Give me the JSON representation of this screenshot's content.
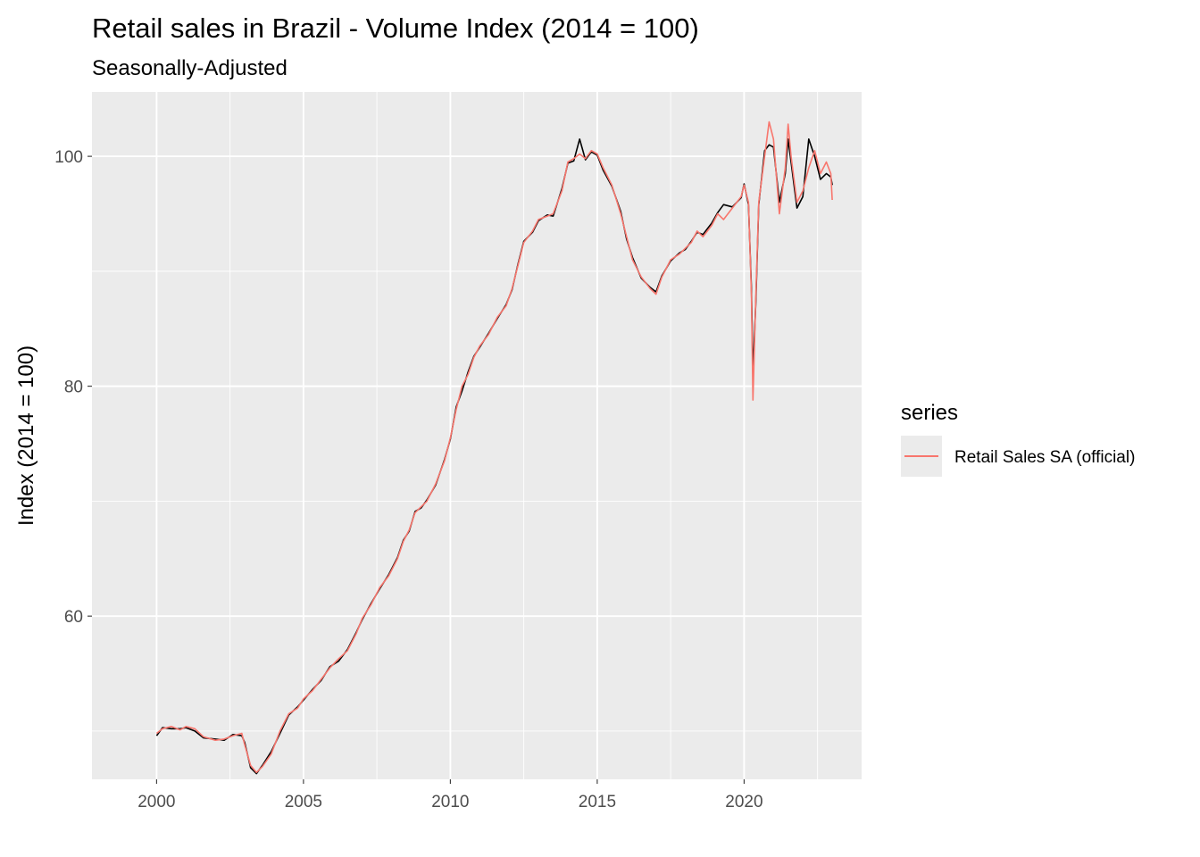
{
  "chart_data": {
    "type": "line",
    "title": "Retail sales in Brazil - Volume Index (2014 = 100)",
    "subtitle": "Seasonally-Adjusted",
    "xlabel": "",
    "ylabel": "Index (2014 = 100)",
    "xlim": [
      1997.8,
      2024.0
    ],
    "ylim": [
      45.8,
      105.6
    ],
    "x_ticks": [
      2000,
      2005,
      2010,
      2015,
      2020
    ],
    "x_tick_labels": [
      "2000",
      "2005",
      "2010",
      "2015",
      "2020"
    ],
    "y_ticks": [
      60,
      80,
      100
    ],
    "y_tick_labels": [
      "60",
      "80",
      "100"
    ],
    "grid": true,
    "legend": {
      "title": "series",
      "position": "right"
    },
    "colors": {
      "official": "#F8766D",
      "computed": "#000000",
      "panel": "#EBEBEB",
      "grid": "#FFFFFF"
    },
    "series": [
      {
        "name": "Retail Sales SA (official)",
        "color": "#F8766D",
        "points": [
          [
            2000.0,
            49.8
          ],
          [
            2000.2,
            50.2
          ],
          [
            2000.5,
            50.4
          ],
          [
            2000.8,
            50.1
          ],
          [
            2001.0,
            50.4
          ],
          [
            2001.3,
            50.2
          ],
          [
            2001.6,
            49.5
          ],
          [
            2002.0,
            49.2
          ],
          [
            2002.3,
            49.3
          ],
          [
            2002.6,
            49.6
          ],
          [
            2002.9,
            49.8
          ],
          [
            2003.0,
            48.8
          ],
          [
            2003.2,
            47.0
          ],
          [
            2003.4,
            46.4
          ],
          [
            2003.6,
            46.9
          ],
          [
            2003.9,
            48.0
          ],
          [
            2004.2,
            50.0
          ],
          [
            2004.5,
            51.5
          ],
          [
            2004.8,
            52.0
          ],
          [
            2005.0,
            52.8
          ],
          [
            2005.3,
            53.5
          ],
          [
            2005.6,
            54.5
          ],
          [
            2005.9,
            55.5
          ],
          [
            2006.2,
            56.3
          ],
          [
            2006.5,
            57.0
          ],
          [
            2006.8,
            58.5
          ],
          [
            2007.0,
            59.8
          ],
          [
            2007.3,
            61.0
          ],
          [
            2007.6,
            62.5
          ],
          [
            2007.9,
            63.5
          ],
          [
            2008.2,
            65.0
          ],
          [
            2008.4,
            66.5
          ],
          [
            2008.6,
            67.5
          ],
          [
            2008.8,
            69.0
          ],
          [
            2009.0,
            69.5
          ],
          [
            2009.2,
            70.0
          ],
          [
            2009.5,
            71.5
          ],
          [
            2009.8,
            73.5
          ],
          [
            2010.0,
            75.5
          ],
          [
            2010.2,
            78.0
          ],
          [
            2010.4,
            80.0
          ],
          [
            2010.6,
            81.0
          ],
          [
            2010.8,
            82.5
          ],
          [
            2011.0,
            83.5
          ],
          [
            2011.3,
            84.5
          ],
          [
            2011.6,
            86.0
          ],
          [
            2011.9,
            87.0
          ],
          [
            2012.1,
            88.5
          ],
          [
            2012.3,
            90.5
          ],
          [
            2012.5,
            92.5
          ],
          [
            2012.8,
            93.5
          ],
          [
            2013.0,
            94.5
          ],
          [
            2013.3,
            94.8
          ],
          [
            2013.5,
            95.0
          ],
          [
            2013.8,
            97.0
          ],
          [
            2014.0,
            99.5
          ],
          [
            2014.2,
            99.8
          ],
          [
            2014.4,
            100.2
          ],
          [
            2014.6,
            99.8
          ],
          [
            2014.8,
            100.5
          ],
          [
            2015.0,
            100.2
          ],
          [
            2015.2,
            99.0
          ],
          [
            2015.5,
            97.5
          ],
          [
            2015.8,
            95.0
          ],
          [
            2016.0,
            93.0
          ],
          [
            2016.2,
            91.0
          ],
          [
            2016.5,
            89.5
          ],
          [
            2016.8,
            88.5
          ],
          [
            2017.0,
            88.0
          ],
          [
            2017.2,
            89.5
          ],
          [
            2017.5,
            91.0
          ],
          [
            2017.8,
            91.5
          ],
          [
            2018.0,
            92.0
          ],
          [
            2018.2,
            92.5
          ],
          [
            2018.4,
            93.5
          ],
          [
            2018.6,
            93.0
          ],
          [
            2018.9,
            94.0
          ],
          [
            2019.1,
            95.0
          ],
          [
            2019.3,
            94.5
          ],
          [
            2019.6,
            95.5
          ],
          [
            2019.9,
            96.5
          ],
          [
            2020.0,
            97.5
          ],
          [
            2020.15,
            96.0
          ],
          [
            2020.25,
            88.0
          ],
          [
            2020.3,
            78.8
          ],
          [
            2020.4,
            88.0
          ],
          [
            2020.5,
            96.0
          ],
          [
            2020.7,
            100.0
          ],
          [
            2020.85,
            103.0
          ],
          [
            2021.0,
            101.5
          ],
          [
            2021.2,
            95.0
          ],
          [
            2021.4,
            99.0
          ],
          [
            2021.5,
            102.8
          ],
          [
            2021.6,
            100.0
          ],
          [
            2021.8,
            96.0
          ],
          [
            2022.0,
            97.0
          ],
          [
            2022.2,
            99.0
          ],
          [
            2022.4,
            100.5
          ],
          [
            2022.6,
            98.5
          ],
          [
            2022.8,
            99.5
          ],
          [
            2022.95,
            98.5
          ],
          [
            2023.0,
            96.2
          ]
        ]
      },
      {
        "name": "",
        "color": "#000000",
        "points": [
          [
            2000.0,
            49.6
          ],
          [
            2000.2,
            50.3
          ],
          [
            2000.5,
            50.2
          ],
          [
            2000.8,
            50.2
          ],
          [
            2001.0,
            50.3
          ],
          [
            2001.3,
            50.0
          ],
          [
            2001.6,
            49.4
          ],
          [
            2002.0,
            49.3
          ],
          [
            2002.3,
            49.2
          ],
          [
            2002.6,
            49.7
          ],
          [
            2002.9,
            49.6
          ],
          [
            2003.0,
            49.0
          ],
          [
            2003.2,
            46.8
          ],
          [
            2003.4,
            46.3
          ],
          [
            2003.6,
            47.0
          ],
          [
            2003.9,
            48.2
          ],
          [
            2004.2,
            49.8
          ],
          [
            2004.5,
            51.4
          ],
          [
            2004.8,
            52.1
          ],
          [
            2005.0,
            52.7
          ],
          [
            2005.3,
            53.6
          ],
          [
            2005.6,
            54.4
          ],
          [
            2005.9,
            55.6
          ],
          [
            2006.2,
            56.1
          ],
          [
            2006.5,
            57.1
          ],
          [
            2006.8,
            58.6
          ],
          [
            2007.0,
            59.7
          ],
          [
            2007.3,
            61.1
          ],
          [
            2007.6,
            62.4
          ],
          [
            2007.9,
            63.6
          ],
          [
            2008.2,
            65.1
          ],
          [
            2008.4,
            66.6
          ],
          [
            2008.6,
            67.4
          ],
          [
            2008.8,
            69.1
          ],
          [
            2009.0,
            69.4
          ],
          [
            2009.2,
            70.1
          ],
          [
            2009.5,
            71.4
          ],
          [
            2009.8,
            73.6
          ],
          [
            2010.0,
            75.4
          ],
          [
            2010.2,
            78.2
          ],
          [
            2010.4,
            79.6
          ],
          [
            2010.6,
            81.2
          ],
          [
            2010.8,
            82.6
          ],
          [
            2011.0,
            83.4
          ],
          [
            2011.3,
            84.6
          ],
          [
            2011.6,
            85.9
          ],
          [
            2011.9,
            87.1
          ],
          [
            2012.1,
            88.4
          ],
          [
            2012.3,
            90.6
          ],
          [
            2012.5,
            92.6
          ],
          [
            2012.8,
            93.4
          ],
          [
            2013.0,
            94.4
          ],
          [
            2013.3,
            94.9
          ],
          [
            2013.5,
            94.8
          ],
          [
            2013.8,
            97.2
          ],
          [
            2014.0,
            99.4
          ],
          [
            2014.2,
            99.6
          ],
          [
            2014.4,
            101.5
          ],
          [
            2014.6,
            99.7
          ],
          [
            2014.8,
            100.4
          ],
          [
            2015.0,
            100.1
          ],
          [
            2015.2,
            98.8
          ],
          [
            2015.5,
            97.4
          ],
          [
            2015.8,
            95.2
          ],
          [
            2016.0,
            92.8
          ],
          [
            2016.2,
            91.2
          ],
          [
            2016.5,
            89.4
          ],
          [
            2016.8,
            88.6
          ],
          [
            2017.0,
            88.2
          ],
          [
            2017.2,
            89.6
          ],
          [
            2017.5,
            90.9
          ],
          [
            2017.8,
            91.6
          ],
          [
            2018.0,
            91.9
          ],
          [
            2018.2,
            92.6
          ],
          [
            2018.4,
            93.4
          ],
          [
            2018.6,
            93.2
          ],
          [
            2018.9,
            94.2
          ],
          [
            2019.1,
            95.1
          ],
          [
            2019.3,
            95.8
          ],
          [
            2019.6,
            95.6
          ],
          [
            2019.9,
            96.4
          ],
          [
            2020.0,
            97.6
          ],
          [
            2020.15,
            95.8
          ],
          [
            2020.25,
            88.5
          ],
          [
            2020.3,
            81.0
          ],
          [
            2020.4,
            87.5
          ],
          [
            2020.5,
            95.8
          ],
          [
            2020.7,
            100.5
          ],
          [
            2020.85,
            101.0
          ],
          [
            2021.0,
            100.8
          ],
          [
            2021.2,
            96.0
          ],
          [
            2021.4,
            98.5
          ],
          [
            2021.5,
            101.5
          ],
          [
            2021.6,
            99.5
          ],
          [
            2021.8,
            95.5
          ],
          [
            2022.0,
            96.5
          ],
          [
            2022.2,
            101.5
          ],
          [
            2022.4,
            100.0
          ],
          [
            2022.6,
            98.0
          ],
          [
            2022.8,
            98.5
          ],
          [
            2022.95,
            98.2
          ],
          [
            2023.0,
            97.5
          ]
        ]
      }
    ]
  }
}
